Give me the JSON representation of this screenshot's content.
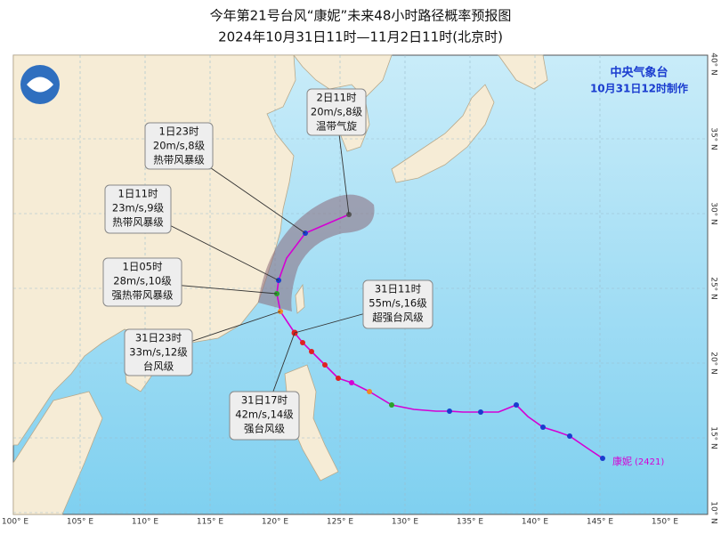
{
  "header": {
    "title": "今年第21号台风“康妮”未来48小时路径概率预报图",
    "subtitle": "2024年10月31日11时—11月2日11时(北京时)"
  },
  "agency": {
    "name": "中央气象台",
    "issued": "10月31日12时制作"
  },
  "callouts": [
    {
      "time": "2日11时",
      "wind": "20m/s,8级",
      "category": "温带气旋"
    },
    {
      "time": "1日23时",
      "wind": "20m/s,8级",
      "category": "热带风暴级"
    },
    {
      "time": "1日11时",
      "wind": "23m/s,9级",
      "category": "热带风暴级"
    },
    {
      "time": "1日05时",
      "wind": "28m/s,10级",
      "category": "强热带风暴级"
    },
    {
      "time": "31日23时",
      "wind": "33m/s,12级",
      "category": "台风级"
    },
    {
      "time": "31日17时",
      "wind": "42m/s,14级",
      "category": "强台风级"
    },
    {
      "time": "31日11时",
      "wind": "55m/s,16级",
      "category": "超强台风级"
    }
  ],
  "storm_label": {
    "name": "康妮",
    "number": "(2421)"
  },
  "longitude_labels": [
    "100° E",
    "105° E",
    "110° E",
    "115° E",
    "120° E",
    "125° E",
    "130° E",
    "135° E",
    "140° E",
    "145° E",
    "150° E"
  ],
  "latitude_labels": [
    "40° N",
    "35° N",
    "30° N",
    "25° N",
    "20° N",
    "15° N",
    "10° N"
  ]
}
